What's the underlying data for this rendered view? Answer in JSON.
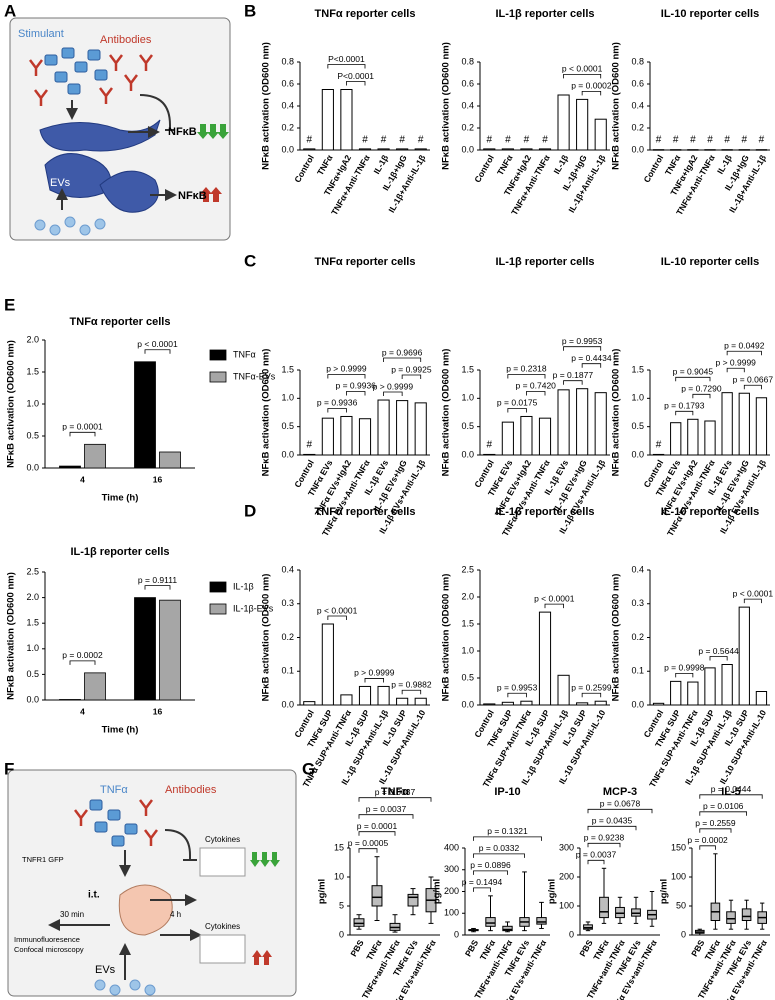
{
  "panel_labels": [
    "A",
    "B",
    "C",
    "D",
    "E",
    "F",
    "G"
  ],
  "diagram_a": {
    "stimulant": "Stimulant",
    "antibodies": "Antibodies",
    "nfkb_down": "NFκB",
    "nfkb_up": "NFκB",
    "evs": "EVs"
  },
  "diagram_f": {
    "tnf": "TNFα",
    "antibodies": "Antibodies",
    "tnfr1": "TNFR1 GFP",
    "it": "i.t.",
    "t30": "30 min",
    "t4": "4 h",
    "cytokines_top": "Cytokines",
    "cytokines_bottom": "Cytokines",
    "imaging_1": "Immunofluoresence",
    "imaging_2": "Confocal microscopy",
    "evs": "EVs"
  },
  "chart_data": [
    {
      "type": "bar",
      "title": "TNFα reporter cells",
      "ylabel": "NFκB activation (OD600 nm)",
      "color": "#ffffff",
      "categories": [
        "Control",
        "TNFα",
        "TNFα+IgA2",
        "TNFα+Anti-TNFα",
        "IL-1β",
        "IL-1β+IgG",
        "IL-1β+Anti-IL-1β"
      ],
      "values": [
        0.01,
        0.55,
        0.55,
        0.01,
        0.01,
        0.01,
        0.01
      ],
      "ylim": [
        0,
        0.8
      ],
      "yticks": [
        {
          "value": 0,
          "label": "0.0"
        },
        0.2,
        0.4,
        0.6,
        0.8
      ],
      "markers": {
        "text": "#",
        "categories": [
          0,
          3,
          4,
          5,
          6
        ]
      },
      "comparisons": [
        {
          "label": "P<0.0001",
          "between": [
            1,
            3
          ]
        },
        {
          "label": "P<0.0001",
          "between": [
            2,
            3
          ]
        }
      ]
    },
    {
      "type": "bar",
      "title": "IL-1β reporter cells",
      "ylabel": "NFκB activation (OD600 nm)",
      "color": "#ffffff",
      "categories": [
        "Control",
        "TNFα",
        "TNFα+IgA2",
        "TNFα+Anti-TNFα",
        "IL-1β",
        "IL-1β+IgG",
        "IL-1β+Anti-IL-1β"
      ],
      "values": [
        0.01,
        0.01,
        0.01,
        0.01,
        0.5,
        0.46,
        0.28
      ],
      "ylim": [
        0,
        0.8
      ],
      "yticks": [
        {
          "value": 0,
          "label": "0.0"
        },
        0.2,
        0.4,
        0.6,
        0.8
      ],
      "markers": {
        "text": "#",
        "categories": [
          0,
          1,
          2,
          3
        ]
      },
      "comparisons": [
        {
          "label": "p < 0.0001",
          "between": [
            4,
            6
          ]
        },
        {
          "label": "p = 0.0002",
          "between": [
            5,
            6
          ]
        }
      ]
    },
    {
      "type": "bar",
      "title": "IL-10 reporter cells",
      "ylabel": "NFκB activation (OD600 nm)",
      "color": "#ffffff",
      "categories": [
        "Control",
        "TNFα",
        "TNFα+IgA2",
        "TNFα+Anti-TNFα",
        "IL-1β",
        "IL-1β+IgG",
        "IL-1β+Anti-IL-1β"
      ],
      "values": [
        0.003,
        0.003,
        0.003,
        0.003,
        0.003,
        0.003,
        0.003
      ],
      "ylim": [
        0,
        0.8
      ],
      "yticks": [
        {
          "value": 0,
          "label": "0.0"
        },
        0.2,
        0.4,
        0.6,
        0.8
      ],
      "markers": {
        "text": "#",
        "categories": [
          0,
          1,
          2,
          3,
          4,
          5,
          6
        ]
      },
      "comparisons": []
    },
    {
      "type": "bar",
      "title": "TNFα reporter cells",
      "ylabel": "NFκB activation (OD600 nm)",
      "color": "#ffffff",
      "categories": [
        "Control",
        "TNFα EVs",
        "TNFα EVs+IgA2",
        "TNFα EVs+Anti-TNFα",
        "IL-1β EVs",
        "IL-1β EVs+IgG",
        "IL-1β EVs+Anti-IL-1β"
      ],
      "values": [
        0.01,
        0.65,
        0.68,
        0.64,
        0.97,
        0.96,
        0.92
      ],
      "ylim": [
        0,
        1.5
      ],
      "yticks": [
        {
          "value": 0,
          "label": "0.0"
        },
        0.5,
        {
          "value": 1,
          "label": "1.0"
        },
        1.5
      ],
      "markers": {
        "text": "#",
        "categories": [
          0
        ]
      },
      "comparisons": [
        {
          "label": "p > 0.9999",
          "between": [
            1,
            3
          ]
        },
        {
          "label": "p = 0.9696",
          "between": [
            4,
            6
          ]
        },
        {
          "label": "p = 0.9936",
          "between": [
            2,
            3
          ]
        },
        {
          "label": "p = 0.9925",
          "between": [
            5,
            6
          ]
        },
        {
          "label": "p = 0.9936",
          "between": [
            1,
            2
          ]
        },
        {
          "label": "p > 0.9999",
          "between": [
            4,
            5
          ]
        }
      ]
    },
    {
      "type": "bar",
      "title": "IL-1β reporter cells",
      "ylabel": "NFκB activation (OD600 nm)",
      "color": "#ffffff",
      "categories": [
        "Control",
        "TNFα EVs",
        "TNFα EVs+IgA2",
        "TNFα EVs+Anti-TNFα",
        "IL-1β EVs",
        "IL-1β EVs+IgG",
        "IL-1β EVs+Anti-IL-1β"
      ],
      "values": [
        0.01,
        0.58,
        0.68,
        0.65,
        1.15,
        1.17,
        1.1
      ],
      "ylim": [
        0,
        1.5
      ],
      "yticks": [
        {
          "value": 0,
          "label": "0.0"
        },
        0.5,
        {
          "value": 1,
          "label": "1.0"
        },
        1.5
      ],
      "markers": {
        "text": "#",
        "categories": [
          0
        ]
      },
      "comparisons": [
        {
          "label": "p = 0.9953",
          "between": [
            4,
            6
          ]
        },
        {
          "label": "p = 0.2318",
          "between": [
            1,
            3
          ]
        },
        {
          "label": "p = 0.4434",
          "between": [
            5,
            6
          ]
        },
        {
          "label": "p = 0.7420",
          "between": [
            2,
            3
          ]
        },
        {
          "label": "p = 0.1877",
          "between": [
            4,
            5
          ]
        },
        {
          "label": "p = 0.0175",
          "between": [
            1,
            2
          ]
        }
      ]
    },
    {
      "type": "bar",
      "title": "IL-10 reporter cells",
      "ylabel": "NFκB activation (OD600 nm)",
      "color": "#ffffff",
      "categories": [
        "Control",
        "TNFα EVs",
        "TNFα EVs+IgA2",
        "TNFα EVs+Anti-TNFα",
        "IL-1β EVs",
        "IL-1β EVs+IgG",
        "IL-1β EVs+Anti-IL-1β"
      ],
      "values": [
        0.01,
        0.57,
        0.63,
        0.6,
        1.1,
        1.09,
        1.01
      ],
      "ylim": [
        0,
        1.5
      ],
      "yticks": [
        {
          "value": 0,
          "label": "0.0"
        },
        0.5,
        {
          "value": 1,
          "label": "1.0"
        },
        1.5
      ],
      "markers": {
        "text": "#",
        "categories": [
          0
        ]
      },
      "comparisons": [
        {
          "label": "p = 0.0492",
          "between": [
            4,
            6
          ]
        },
        {
          "label": "p > 0.9999",
          "between": [
            4,
            5
          ]
        },
        {
          "label": "p = 0.0667",
          "between": [
            5,
            6
          ]
        },
        {
          "label": "p = 0.9045",
          "between": [
            1,
            3
          ]
        },
        {
          "label": "p = 0.7290",
          "between": [
            2,
            3
          ]
        },
        {
          "label": "p = 0.1793",
          "between": [
            1,
            2
          ]
        }
      ]
    },
    {
      "type": "bar",
      "title": "TNFα reporter cells",
      "ylabel": "NFκB activation (OD600 nm)",
      "color": "#ffffff",
      "categories": [
        "Control",
        "TNFα SUP",
        "TNFα SUP+Anti-TNFα",
        "IL-1β SUP",
        "IL-1β SUP+Anti-IL-1β",
        "IL-10 SUP",
        "IL-10 SUP+Anti-IL-10"
      ],
      "values": [
        0.01,
        0.24,
        0.03,
        0.055,
        0.055,
        0.02,
        0.02
      ],
      "ylim": [
        0,
        0.4
      ],
      "yticks": [
        {
          "value": 0,
          "label": "0.0"
        },
        0.1,
        0.2,
        0.3,
        0.4
      ],
      "comparisons": [
        {
          "label": "p < 0.0001",
          "between": [
            1,
            2
          ]
        },
        {
          "label": "p > 0.9999",
          "between": [
            3,
            4
          ]
        },
        {
          "label": "p = 0.9882",
          "between": [
            5,
            6
          ]
        }
      ]
    },
    {
      "type": "bar",
      "title": "IL-1β reporter cells",
      "ylabel": "NFκB activation (OD600 nm)",
      "color": "#ffffff",
      "categories": [
        "Control",
        "TNFα SUP",
        "TNFα SUP+Anti-TNFα",
        "IL-1β SUP",
        "IL-1β SUP+Anti-IL-1β",
        "IL-10 SUP",
        "IL-10 SUP+Anti-IL-10"
      ],
      "values": [
        0.02,
        0.05,
        0.07,
        1.72,
        0.55,
        0.04,
        0.07
      ],
      "ylim": [
        0,
        2.5
      ],
      "yticks": [
        {
          "value": 0,
          "label": "0.0"
        },
        0.5,
        {
          "value": 1,
          "label": "1.0"
        },
        1.5,
        {
          "value": 2,
          "label": "2.0"
        },
        2.5
      ],
      "comparisons": [
        {
          "label": "p = 0.9953",
          "between": [
            1,
            2
          ]
        },
        {
          "label": "p < 0.0001",
          "between": [
            3,
            4
          ]
        },
        {
          "label": "p = 0.2599",
          "between": [
            5,
            6
          ]
        }
      ]
    },
    {
      "type": "bar",
      "title": "IL-10 reporter cells",
      "ylabel": "NFκB activation (OD600 nm)",
      "color": "#ffffff",
      "categories": [
        "Control",
        "TNFα SUP",
        "TNFα SUP+Anti-TNFα",
        "IL-1β SUP",
        "IL-1β SUP+Anti-IL-1β",
        "IL-10 SUP",
        "IL-10 SUP+Anti-IL-10"
      ],
      "values": [
        0.005,
        0.07,
        0.068,
        0.11,
        0.12,
        0.29,
        0.04
      ],
      "ylim": [
        0,
        0.4
      ],
      "yticks": [
        {
          "value": 0,
          "label": "0.0"
        },
        0.1,
        0.2,
        0.3,
        0.4
      ],
      "comparisons": [
        {
          "label": "p = 0.9998",
          "between": [
            1,
            2
          ]
        },
        {
          "label": "p = 0.5644",
          "between": [
            3,
            4
          ]
        },
        {
          "label": "p < 0.0001",
          "between": [
            5,
            6
          ]
        }
      ]
    },
    {
      "type": "grouped_bar",
      "title": "TNFα reporter cells",
      "ylabel": "NFκB activation (OD600 nm)",
      "xlabel": "Time (h)",
      "categories": [
        "4",
        "16"
      ],
      "series": [
        {
          "name": "TNFα",
          "color": "#000000",
          "values": [
            0.03,
            1.66
          ]
        },
        {
          "name": "TNFα-EVs",
          "color": "#a6a6a6",
          "values": [
            0.37,
            0.25
          ]
        }
      ],
      "ylim": [
        0,
        2
      ],
      "yticks": [
        {
          "value": 0,
          "label": "0.0"
        },
        0.5,
        {
          "value": 1,
          "label": "1.0"
        },
        1.5,
        {
          "value": 2,
          "label": "2.0"
        }
      ],
      "comparisons": [
        {
          "label": "p = 0.0001",
          "group": 0
        },
        {
          "label": "p < 0.0001",
          "group": 1
        }
      ]
    },
    {
      "type": "grouped_bar",
      "title": "IL-1β reporter cells",
      "ylabel": "NFκB activation (OD600 nm)",
      "xlabel": "Time (h)",
      "categories": [
        "4",
        "16"
      ],
      "series": [
        {
          "name": "IL-1β",
          "color": "#000000",
          "values": [
            0.01,
            2.0
          ]
        },
        {
          "name": "IL-1β-EVs",
          "color": "#a6a6a6",
          "values": [
            0.53,
            1.95
          ]
        }
      ],
      "ylim": [
        0,
        2.5
      ],
      "yticks": [
        {
          "value": 0,
          "label": "0.0"
        },
        0.5,
        {
          "value": 1,
          "label": "1.0"
        },
        1.5,
        {
          "value": 2,
          "label": "2.0"
        },
        2.5
      ],
      "comparisons": [
        {
          "label": "p = 0.0002",
          "group": 0
        },
        {
          "label": "p = 0.9111",
          "group": 1
        }
      ]
    },
    {
      "type": "box",
      "title": "TNFα",
      "ylabel": "pg/ml",
      "color": "#bdbdbd",
      "categories": [
        "PBS",
        "TNFα",
        "TNFα+anti-TNFα",
        "TNFα EVs",
        "TNFα EVs+anti-TNFα"
      ],
      "boxes": [
        {
          "min": 1,
          "q1": 1.5,
          "median": 2,
          "q3": 2.8,
          "max": 3.5
        },
        {
          "min": 2.5,
          "q1": 5,
          "median": 6.5,
          "q3": 8.5,
          "max": 13.5
        },
        {
          "min": 0.5,
          "q1": 0.8,
          "median": 1.3,
          "q3": 2,
          "max": 3.5
        },
        {
          "min": 3.5,
          "q1": 5,
          "median": 6.5,
          "q3": 7,
          "max": 8
        },
        {
          "min": 2,
          "q1": 4,
          "median": 6,
          "q3": 8,
          "max": 10
        }
      ],
      "ylim": [
        0,
        15
      ],
      "yticks": [
        0,
        5,
        10,
        15
      ],
      "comparisons": [
        {
          "label": "p = 0.0037",
          "between": [
            0,
            4
          ]
        },
        {
          "label": "p = 0.0037",
          "between": [
            0,
            3
          ]
        },
        {
          "label": "p = 0.0001",
          "between": [
            0,
            2
          ]
        },
        {
          "label": "p = 0.0005",
          "between": [
            0,
            1
          ]
        }
      ]
    },
    {
      "type": "box",
      "title": "IP-10",
      "ylabel": "pg/ml",
      "color": "#bdbdbd",
      "categories": [
        "PBS",
        "TNFα",
        "TNFα+anti-TNFα",
        "TNFα EVs",
        "TNFα EVs+anti-TNFα"
      ],
      "boxes": [
        {
          "min": 15,
          "q1": 20,
          "median": 22,
          "q3": 25,
          "max": 30
        },
        {
          "min": 20,
          "q1": 40,
          "median": 55,
          "q3": 80,
          "max": 180
        },
        {
          "min": 15,
          "q1": 20,
          "median": 25,
          "q3": 40,
          "max": 60
        },
        {
          "min": 20,
          "q1": 40,
          "median": 60,
          "q3": 80,
          "max": 290
        },
        {
          "min": 30,
          "q1": 50,
          "median": 60,
          "q3": 80,
          "max": 150
        }
      ],
      "ylim": [
        0,
        400
      ],
      "yticks": [
        0,
        100,
        200,
        300,
        400
      ],
      "comparisons": [
        {
          "label": "p = 0.1321",
          "between": [
            0,
            4
          ]
        },
        {
          "label": "p = 0.0332",
          "between": [
            0,
            3
          ]
        },
        {
          "label": "p = 0.0896",
          "between": [
            0,
            2
          ]
        },
        {
          "label": "p = 0.1494",
          "between": [
            0,
            1
          ]
        }
      ]
    },
    {
      "type": "box",
      "title": "MCP-3",
      "ylabel": "pg/ml",
      "color": "#bdbdbd",
      "categories": [
        "PBS",
        "TNFα",
        "TNFα+anti-TNFα",
        "TNFα EVs",
        "TNFα EVs+anti-TNFα"
      ],
      "boxes": [
        {
          "min": 15,
          "q1": 20,
          "median": 25,
          "q3": 35,
          "max": 45
        },
        {
          "min": 40,
          "q1": 60,
          "median": 80,
          "q3": 130,
          "max": 230
        },
        {
          "min": 40,
          "q1": 60,
          "median": 75,
          "q3": 95,
          "max": 130
        },
        {
          "min": 40,
          "q1": 65,
          "median": 75,
          "q3": 90,
          "max": 130
        },
        {
          "min": 30,
          "q1": 55,
          "median": 70,
          "q3": 85,
          "max": 150
        }
      ],
      "ylim": [
        0,
        300
      ],
      "yticks": [
        0,
        100,
        200,
        300
      ],
      "comparisons": [
        {
          "label": "p = 0.0678",
          "between": [
            0,
            4
          ]
        },
        {
          "label": "p = 0.0435",
          "between": [
            0,
            3
          ]
        },
        {
          "label": "p = 0.9238",
          "between": [
            0,
            2
          ]
        },
        {
          "label": "p = 0.0037",
          "between": [
            0,
            1
          ]
        }
      ]
    },
    {
      "type": "box",
      "title": "IL-5",
      "ylabel": "pg/ml",
      "color": "#bdbdbd",
      "categories": [
        "PBS",
        "TNFα",
        "TNFα+anti-TNFα",
        "TNFα EVs",
        "TNFα EVs+anti-TNFα"
      ],
      "boxes": [
        {
          "min": 0,
          "q1": 3,
          "median": 5,
          "q3": 8,
          "max": 10
        },
        {
          "min": 10,
          "q1": 25,
          "median": 40,
          "q3": 55,
          "max": 140
        },
        {
          "min": 10,
          "q1": 20,
          "median": 28,
          "q3": 40,
          "max": 60
        },
        {
          "min": 10,
          "q1": 25,
          "median": 32,
          "q3": 45,
          "max": 60
        },
        {
          "min": 10,
          "q1": 20,
          "median": 30,
          "q3": 40,
          "max": 55
        }
      ],
      "ylim": [
        0,
        150
      ],
      "yticks": [
        0,
        50,
        100,
        150
      ],
      "comparisons": [
        {
          "label": "p = 0.0444",
          "between": [
            0,
            4
          ]
        },
        {
          "label": "p = 0.0106",
          "between": [
            0,
            3
          ]
        },
        {
          "label": "p = 0.2559",
          "between": [
            0,
            2
          ]
        },
        {
          "label": "p = 0.0002",
          "between": [
            0,
            1
          ]
        }
      ]
    }
  ]
}
